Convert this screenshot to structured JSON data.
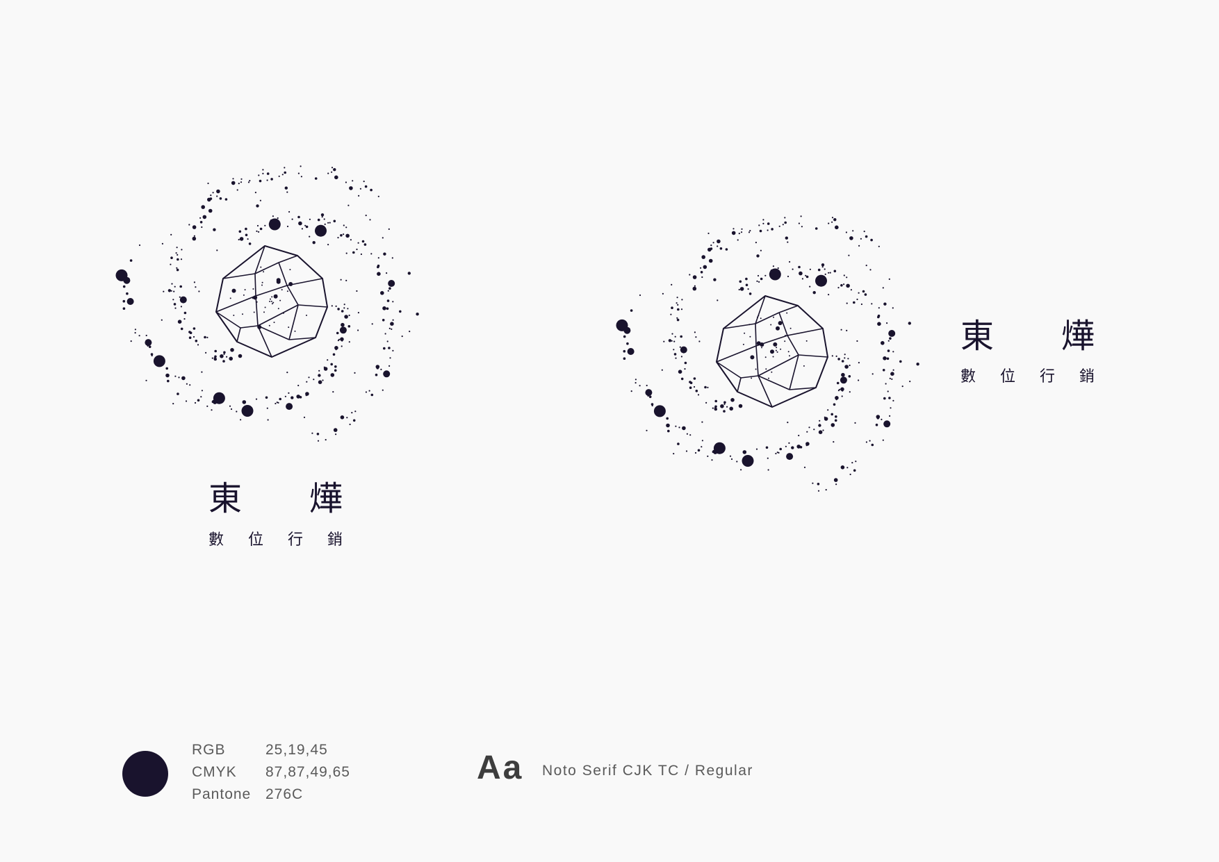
{
  "colors": {
    "brand": "#19132d",
    "background": "#f9f9f9"
  },
  "logo": {
    "name_chars": [
      "東",
      "燁"
    ],
    "subtitle_chars": [
      "數",
      "位",
      "行",
      "銷"
    ]
  },
  "palette": {
    "rgb_label": "RGB",
    "rgb_value": "25,19,45",
    "cmyk_label": "CMYK",
    "cmyk_value": "87,87,49,65",
    "pantone_label": "Pantone",
    "pantone_value": "276C"
  },
  "typography": {
    "sample": "Aa",
    "font_name": "Noto Serif CJK TC / Regular"
  }
}
